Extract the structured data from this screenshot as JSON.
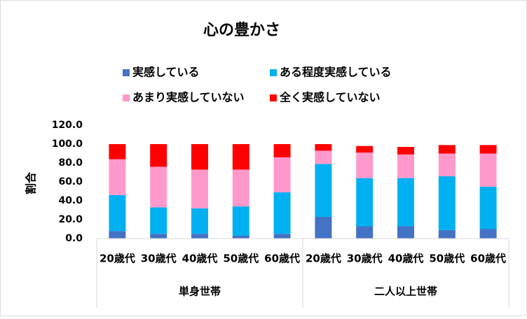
{
  "chart_data": {
    "type": "stacked_bar",
    "title": "心の豊かさ",
    "y_label": "割合",
    "groups": [
      {
        "name": "単身世帯",
        "categories": [
          "20歳代",
          "30歳代",
          "40歳代",
          "50歳代",
          "60歳代"
        ]
      },
      {
        "name": "二人以上世帯",
        "categories": [
          "20歳代",
          "30歳代",
          "40歳代",
          "50歳代",
          "60歳代"
        ]
      }
    ],
    "series": [
      {
        "name": "実感している",
        "color": "#4472c4",
        "values": [
          8,
          5,
          5,
          3,
          5,
          23,
          13,
          13,
          9,
          10
        ]
      },
      {
        "name": "ある程度実感している",
        "color": "#00b0f0",
        "values": [
          38,
          28,
          27,
          31,
          44,
          56,
          51,
          51,
          57,
          45
        ]
      },
      {
        "name": "あまり実感していない",
        "color": "#ff99cc",
        "values": [
          38,
          43,
          41,
          39,
          37,
          14,
          27,
          25,
          24,
          35
        ]
      },
      {
        "name": "全く実感していない",
        "color": "#ff0000",
        "values": [
          16,
          24,
          27,
          27,
          14,
          7,
          7,
          8,
          9,
          9
        ]
      }
    ],
    "ylim": [
      0,
      120
    ],
    "yticks": [
      {
        "value": 0,
        "label": "0.0"
      },
      {
        "value": 20,
        "label": "20.0"
      },
      {
        "value": 40,
        "label": "40.0"
      },
      {
        "value": 60,
        "label": "60.0"
      },
      {
        "value": 80,
        "label": "80.0"
      },
      {
        "value": 100,
        "label": "100.0"
      },
      {
        "value": 120,
        "label": "120.0"
      }
    ],
    "grid": false
  }
}
